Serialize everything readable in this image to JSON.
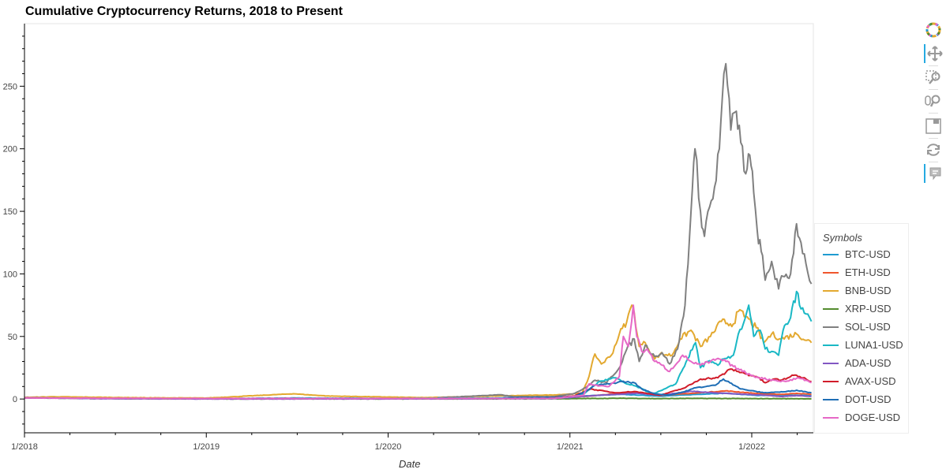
{
  "chart_data": {
    "type": "line",
    "title": "Cumulative Cryptocurrency Returns, 2018 to Present",
    "xlabel": "Date",
    "ylabel": "",
    "x_ticks": [
      "1/2018",
      "1/2019",
      "1/2020",
      "1/2021",
      "1/2022"
    ],
    "y_ticks": [
      "0",
      "50",
      "100",
      "150",
      "200",
      "250"
    ],
    "ylim": [
      -27,
      300
    ],
    "xlim": [
      "2018-01-01",
      "2022-05-01"
    ],
    "grid": false,
    "legend_title": "Symbols",
    "legend_position": "right",
    "series": [
      {
        "name": "BTC-USD",
        "color": "#1f9bd1",
        "points": [
          [
            "2018-01-01",
            1
          ],
          [
            "2018-06-01",
            0.5
          ],
          [
            "2019-01-01",
            0.3
          ],
          [
            "2019-07-01",
            0.8
          ],
          [
            "2020-01-01",
            0.5
          ],
          [
            "2020-07-01",
            0.6
          ],
          [
            "2020-12-01",
            1.4
          ],
          [
            "2021-01-15",
            2.3
          ],
          [
            "2021-04-15",
            3.7
          ],
          [
            "2021-07-01",
            2.3
          ],
          [
            "2021-10-15",
            4.3
          ],
          [
            "2021-11-10",
            4.6
          ],
          [
            "2022-01-15",
            2.8
          ],
          [
            "2022-04-01",
            3.1
          ],
          [
            "2022-05-01",
            2.6
          ]
        ]
      },
      {
        "name": "ETH-USD",
        "color": "#f0562d",
        "points": [
          [
            "2018-01-01",
            1
          ],
          [
            "2018-06-01",
            0.6
          ],
          [
            "2019-01-01",
            0.2
          ],
          [
            "2019-07-01",
            0.4
          ],
          [
            "2020-01-01",
            0.2
          ],
          [
            "2020-07-01",
            0.3
          ],
          [
            "2020-12-01",
            0.8
          ],
          [
            "2021-02-01",
            2.1
          ],
          [
            "2021-05-10",
            5.4
          ],
          [
            "2021-07-01",
            3.0
          ],
          [
            "2021-09-01",
            4.5
          ],
          [
            "2021-11-10",
            6.5
          ],
          [
            "2022-01-15",
            4.3
          ],
          [
            "2022-03-01",
            3.7
          ],
          [
            "2022-04-01",
            4.5
          ],
          [
            "2022-05-01",
            3.8
          ]
        ]
      },
      {
        "name": "BNB-USD",
        "color": "#e3a930",
        "points": [
          [
            "2018-01-01",
            1.3
          ],
          [
            "2018-03-01",
            1.8
          ],
          [
            "2018-09-01",
            1
          ],
          [
            "2019-01-01",
            0.8
          ],
          [
            "2019-03-01",
            1.9
          ],
          [
            "2019-06-25",
            4.2
          ],
          [
            "2019-09-01",
            2.4
          ],
          [
            "2020-01-01",
            1.6
          ],
          [
            "2020-03-15",
            1.1
          ],
          [
            "2020-08-01",
            2.4
          ],
          [
            "2020-12-01",
            3.3
          ],
          [
            "2021-01-25",
            4.5
          ],
          [
            "2021-02-08",
            18
          ],
          [
            "2021-02-20",
            36
          ],
          [
            "2021-03-05",
            28
          ],
          [
            "2021-03-25",
            35
          ],
          [
            "2021-04-10",
            52
          ],
          [
            "2021-04-25",
            62
          ],
          [
            "2021-05-05",
            75
          ],
          [
            "2021-05-10",
            69
          ],
          [
            "2021-05-20",
            42
          ],
          [
            "2021-06-01",
            45
          ],
          [
            "2021-06-20",
            32
          ],
          [
            "2021-07-01",
            36
          ],
          [
            "2021-07-25",
            35
          ],
          [
            "2021-08-10",
            48
          ],
          [
            "2021-09-01",
            55
          ],
          [
            "2021-09-20",
            42
          ],
          [
            "2021-10-10",
            50
          ],
          [
            "2021-11-01",
            62
          ],
          [
            "2021-11-25",
            60
          ],
          [
            "2021-12-05",
            70
          ],
          [
            "2021-12-20",
            66
          ],
          [
            "2022-01-10",
            57
          ],
          [
            "2022-01-25",
            45
          ],
          [
            "2022-02-10",
            52
          ],
          [
            "2022-03-01",
            48
          ],
          [
            "2022-04-01",
            52
          ],
          [
            "2022-05-01",
            45
          ]
        ]
      },
      {
        "name": "XRP-USD",
        "color": "#548c2f",
        "points": [
          [
            "2018-01-01",
            1
          ],
          [
            "2018-06-01",
            0.3
          ],
          [
            "2019-01-01",
            0.1
          ],
          [
            "2020-01-01",
            0.1
          ],
          [
            "2020-12-01",
            0.2
          ],
          [
            "2021-04-15",
            0.6
          ],
          [
            "2021-07-01",
            0.3
          ],
          [
            "2021-09-01",
            0.5
          ],
          [
            "2022-01-01",
            0.3
          ],
          [
            "2022-05-01",
            0.2
          ]
        ]
      },
      {
        "name": "SOL-USD",
        "color": "#808080",
        "points": [
          [
            "2020-04-10",
            1
          ],
          [
            "2020-06-01",
            2
          ],
          [
            "2020-08-15",
            3.4
          ],
          [
            "2020-09-10",
            1.8
          ],
          [
            "2020-12-01",
            2
          ],
          [
            "2021-01-10",
            4.5
          ],
          [
            "2021-02-01",
            9
          ],
          [
            "2021-02-20",
            15
          ],
          [
            "2021-03-15",
            13
          ],
          [
            "2021-04-10",
            25
          ],
          [
            "2021-04-25",
            40
          ],
          [
            "2021-05-10",
            48
          ],
          [
            "2021-05-20",
            30
          ],
          [
            "2021-06-01",
            43
          ],
          [
            "2021-06-20",
            34
          ],
          [
            "2021-07-05",
            37
          ],
          [
            "2021-07-20",
            28
          ],
          [
            "2021-08-05",
            40
          ],
          [
            "2021-08-20",
            75
          ],
          [
            "2021-09-01",
            150
          ],
          [
            "2021-09-09",
            200
          ],
          [
            "2021-09-20",
            150
          ],
          [
            "2021-09-28",
            130
          ],
          [
            "2021-10-05",
            150
          ],
          [
            "2021-10-15",
            160
          ],
          [
            "2021-10-28",
            200
          ],
          [
            "2021-11-06",
            260
          ],
          [
            "2021-11-10",
            268
          ],
          [
            "2021-11-20",
            215
          ],
          [
            "2021-12-01",
            230
          ],
          [
            "2021-12-10",
            205
          ],
          [
            "2021-12-20",
            180
          ],
          [
            "2021-12-28",
            195
          ],
          [
            "2022-01-05",
            165
          ],
          [
            "2022-01-12",
            135
          ],
          [
            "2022-01-20",
            118
          ],
          [
            "2022-01-28",
            95
          ],
          [
            "2022-02-10",
            110
          ],
          [
            "2022-02-24",
            88
          ],
          [
            "2022-03-05",
            98
          ],
          [
            "2022-03-20",
            100
          ],
          [
            "2022-04-01",
            140
          ],
          [
            "2022-04-10",
            125
          ],
          [
            "2022-04-20",
            108
          ],
          [
            "2022-05-01",
            92
          ]
        ]
      },
      {
        "name": "LUNA1-USD",
        "color": "#1ab8c5",
        "points": [
          [
            "2019-07-01",
            0.5
          ],
          [
            "2020-01-01",
            0.4
          ],
          [
            "2020-09-01",
            0.8
          ],
          [
            "2021-01-01",
            1
          ],
          [
            "2021-02-01",
            5
          ],
          [
            "2021-03-01",
            14
          ],
          [
            "2021-04-01",
            17
          ],
          [
            "2021-04-25",
            12
          ],
          [
            "2021-05-15",
            10
          ],
          [
            "2021-06-15",
            4
          ],
          [
            "2021-07-05",
            7
          ],
          [
            "2021-08-01",
            12
          ],
          [
            "2021-08-25",
            32
          ],
          [
            "2021-09-10",
            45
          ],
          [
            "2021-09-20",
            25
          ],
          [
            "2021-10-05",
            30
          ],
          [
            "2021-10-25",
            27
          ],
          [
            "2021-11-05",
            32
          ],
          [
            "2021-11-25",
            35
          ],
          [
            "2021-12-05",
            52
          ],
          [
            "2021-12-15",
            60
          ],
          [
            "2021-12-26",
            75
          ],
          [
            "2022-01-05",
            50
          ],
          [
            "2022-01-18",
            55
          ],
          [
            "2022-01-28",
            40
          ],
          [
            "2022-02-10",
            38
          ],
          [
            "2022-02-24",
            35
          ],
          [
            "2022-03-05",
            55
          ],
          [
            "2022-03-20",
            65
          ],
          [
            "2022-04-01",
            86
          ],
          [
            "2022-04-10",
            72
          ],
          [
            "2022-04-20",
            68
          ],
          [
            "2022-05-01",
            62
          ]
        ]
      },
      {
        "name": "ADA-USD",
        "color": "#8257c3",
        "points": [
          [
            "2018-01-01",
            1
          ],
          [
            "2018-06-01",
            0.3
          ],
          [
            "2019-01-01",
            0.1
          ],
          [
            "2020-01-01",
            0.1
          ],
          [
            "2020-12-01",
            0.4
          ],
          [
            "2021-02-25",
            2.9
          ],
          [
            "2021-05-15",
            4.6
          ],
          [
            "2021-07-01",
            3.0
          ],
          [
            "2021-09-01",
            6.2
          ],
          [
            "2021-11-10",
            4.5
          ],
          [
            "2022-01-15",
            3.3
          ],
          [
            "2022-03-01",
            2.0
          ],
          [
            "2022-04-01",
            2.8
          ],
          [
            "2022-05-01",
            2.1
          ]
        ]
      },
      {
        "name": "AVAX-USD",
        "color": "#d11c2a",
        "points": [
          [
            "2020-09-20",
            1
          ],
          [
            "2020-10-01",
            0.8
          ],
          [
            "2020-12-01",
            1.2
          ],
          [
            "2021-01-10",
            2.5
          ],
          [
            "2021-02-10",
            8
          ],
          [
            "2021-04-01",
            5
          ],
          [
            "2021-05-10",
            6
          ],
          [
            "2021-07-01",
            3
          ],
          [
            "2021-08-20",
            9
          ],
          [
            "2021-09-20",
            16
          ],
          [
            "2021-10-25",
            17
          ],
          [
            "2021-11-20",
            24
          ],
          [
            "2021-12-05",
            22
          ],
          [
            "2021-12-20",
            20
          ],
          [
            "2022-01-10",
            18
          ],
          [
            "2022-01-28",
            13
          ],
          [
            "2022-02-15",
            16
          ],
          [
            "2022-03-01",
            15
          ],
          [
            "2022-03-20",
            18
          ],
          [
            "2022-04-01",
            19
          ],
          [
            "2022-04-20",
            16
          ],
          [
            "2022-05-01",
            14
          ]
        ]
      },
      {
        "name": "DOT-USD",
        "color": "#1f6eb5",
        "points": [
          [
            "2020-08-20",
            1
          ],
          [
            "2020-10-01",
            1.2
          ],
          [
            "2020-12-01",
            1.2
          ],
          [
            "2021-01-10",
            2
          ],
          [
            "2021-02-01",
            6
          ],
          [
            "2021-02-20",
            11
          ],
          [
            "2021-03-20",
            12
          ],
          [
            "2021-04-15",
            14
          ],
          [
            "2021-05-10",
            13
          ],
          [
            "2021-05-25",
            8
          ],
          [
            "2021-06-20",
            4.2
          ],
          [
            "2021-07-20",
            3.1
          ],
          [
            "2021-08-20",
            6
          ],
          [
            "2021-09-10",
            9
          ],
          [
            "2021-10-01",
            10
          ],
          [
            "2021-10-20",
            11
          ],
          [
            "2021-11-05",
            16
          ],
          [
            "2021-11-15",
            14
          ],
          [
            "2021-12-10",
            8
          ],
          [
            "2022-01-10",
            6
          ],
          [
            "2022-01-25",
            5
          ],
          [
            "2022-02-20",
            5.5
          ],
          [
            "2022-03-10",
            5.8
          ],
          [
            "2022-04-01",
            7
          ],
          [
            "2022-05-01",
            5
          ]
        ]
      },
      {
        "name": "DOGE-USD",
        "color": "#e668c6",
        "points": [
          [
            "2018-01-01",
            0.9
          ],
          [
            "2018-06-01",
            0.6
          ],
          [
            "2019-01-01",
            0.4
          ],
          [
            "2020-01-01",
            0.4
          ],
          [
            "2020-12-01",
            0.5
          ],
          [
            "2021-01-28",
            3
          ],
          [
            "2021-02-08",
            12
          ],
          [
            "2021-02-20",
            11
          ],
          [
            "2021-03-20",
            10
          ],
          [
            "2021-04-10",
            18
          ],
          [
            "2021-04-18",
            50
          ],
          [
            "2021-04-28",
            42
          ],
          [
            "2021-05-08",
            75
          ],
          [
            "2021-05-15",
            50
          ],
          [
            "2021-05-25",
            38
          ],
          [
            "2021-06-05",
            40
          ],
          [
            "2021-06-20",
            30
          ],
          [
            "2021-07-05",
            27
          ],
          [
            "2021-07-20",
            22
          ],
          [
            "2021-08-15",
            35
          ],
          [
            "2021-09-01",
            30
          ],
          [
            "2021-09-20",
            27
          ],
          [
            "2021-10-10",
            30
          ],
          [
            "2021-10-28",
            32
          ],
          [
            "2021-11-10",
            30
          ],
          [
            "2021-11-25",
            26
          ],
          [
            "2021-12-20",
            21
          ],
          [
            "2022-01-15",
            17
          ],
          [
            "2022-02-15",
            15
          ],
          [
            "2022-03-10",
            14
          ],
          [
            "2022-04-05",
            17
          ],
          [
            "2022-04-20",
            15
          ],
          [
            "2022-05-01",
            13
          ]
        ]
      }
    ]
  },
  "toolbar": {
    "tools": [
      "bokeh-logo-icon",
      "pan-icon",
      "box-zoom-icon",
      "wheel-zoom-icon",
      "save-icon",
      "reset-icon",
      "hover-icon"
    ]
  }
}
